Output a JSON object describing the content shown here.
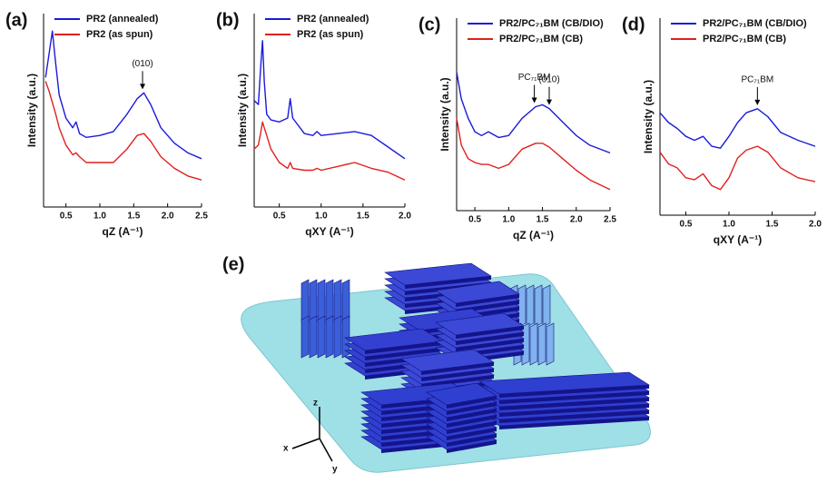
{
  "chart_data": [
    {
      "type": "line",
      "panel_label": "(a)",
      "xlabel": "qZ (A⁻¹)",
      "ylabel": "Intensity (a.u.)",
      "x": [
        0.2,
        0.25,
        0.3,
        0.35,
        0.4,
        0.5,
        0.6,
        0.65,
        0.7,
        0.8,
        1.0,
        1.2,
        1.4,
        1.55,
        1.65,
        1.75,
        1.9,
        2.1,
        2.3,
        2.5
      ],
      "series": [
        {
          "name": "PR2 (annealed)",
          "color": "#1a1adb",
          "values": [
            67,
            79,
            91,
            74,
            58,
            46,
            41,
            44,
            38,
            36,
            37,
            39,
            48,
            56,
            59,
            53,
            41,
            33,
            28,
            25
          ]
        },
        {
          "name": "PR2 (as spun)",
          "color": "#e0201e",
          "values": [
            65,
            60,
            54,
            48,
            41,
            32,
            27,
            28,
            26,
            23,
            23,
            23,
            30,
            37,
            38,
            34,
            26,
            20,
            16,
            14
          ]
        }
      ],
      "xlim": [
        0.17,
        2.5
      ],
      "ylim": [
        0,
        100
      ],
      "xticks": [
        0.5,
        {
          "value": 1,
          "label": "1.0"
        },
        1.5,
        {
          "value": 2,
          "label": "2.0"
        },
        2.5
      ],
      "legend": "top",
      "annotations": [
        {
          "text": "(010)",
          "x": 1.63,
          "arrow": true
        }
      ]
    },
    {
      "type": "line",
      "panel_label": "(b)",
      "xlabel": "qXY (A⁻¹)",
      "ylabel": "Intensity (a.u.)",
      "x": [
        0.2,
        0.25,
        0.28,
        0.3,
        0.32,
        0.35,
        0.4,
        0.5,
        0.6,
        0.63,
        0.66,
        0.8,
        0.9,
        0.95,
        1.0,
        1.2,
        1.4,
        1.6,
        1.8,
        2.0
      ],
      "series": [
        {
          "name": "PR2 (annealed)",
          "color": "#1a1adb",
          "values": [
            55,
            53,
            74,
            86,
            65,
            48,
            45,
            44,
            46,
            56,
            46,
            38,
            37,
            39,
            37,
            38,
            39,
            37,
            31,
            25
          ]
        },
        {
          "name": "PR2 (as spun)",
          "color": "#e0201e",
          "values": [
            30,
            32,
            39,
            44,
            41,
            37,
            30,
            23,
            20,
            23,
            20,
            19,
            19,
            20,
            19,
            21,
            23,
            20,
            18,
            14
          ]
        }
      ],
      "xlim": [
        0.2,
        2.0
      ],
      "ylim": [
        0,
        100
      ],
      "xticks": [
        0.5,
        {
          "value": 1,
          "label": "1.0"
        },
        1.5,
        {
          "value": 2,
          "label": "2.0"
        }
      ],
      "legend": "top",
      "annotations": []
    },
    {
      "type": "line",
      "panel_label": "(c)",
      "xlabel": "qZ (A⁻¹)",
      "ylabel": "Intensity (a.u.)",
      "x": [
        0.23,
        0.3,
        0.4,
        0.5,
        0.6,
        0.7,
        0.85,
        1.0,
        1.2,
        1.4,
        1.5,
        1.6,
        1.8,
        2.0,
        2.2,
        2.5
      ],
      "series": [
        {
          "name": "PR2/PC₇₁BM (CB/DIO)",
          "color": "#1a1adb",
          "values": [
            72,
            58,
            48,
            41,
            39,
            41,
            38,
            39,
            48,
            54,
            55,
            53,
            46,
            39,
            34,
            30
          ]
        },
        {
          "name": "PR2/PC₇₁BM (CB)",
          "color": "#e0201e",
          "values": [
            48,
            34,
            27,
            25,
            24,
            24,
            22,
            24,
            32,
            35,
            35,
            33,
            27,
            21,
            16,
            11
          ]
        }
      ],
      "xlim": [
        0.23,
        2.5
      ],
      "ylim": [
        0,
        100
      ],
      "xticks": [
        0.5,
        {
          "value": 1,
          "label": "1.0"
        },
        1.5,
        {
          "value": 2,
          "label": "2.0"
        },
        2.5
      ],
      "legend": "top",
      "annotations": [
        {
          "text": "PC₇₁BM",
          "x": 1.38,
          "arrow": true
        },
        {
          "text": "(010)",
          "x": 1.6,
          "arrow": true
        }
      ]
    },
    {
      "type": "line",
      "panel_label": "(d)",
      "xlabel": "qXY (A⁻¹)",
      "ylabel": "Intensity (a.u.)",
      "x": [
        0.2,
        0.3,
        0.4,
        0.5,
        0.6,
        0.7,
        0.8,
        0.9,
        1.0,
        1.1,
        1.2,
        1.33,
        1.45,
        1.6,
        1.8,
        2.0
      ],
      "series": [
        {
          "name": "PR2/PC₇₁BM (CB/DIO)",
          "color": "#1a1adb",
          "values": [
            52,
            47,
            44,
            40,
            38,
            40,
            35,
            34,
            40,
            47,
            52,
            54,
            50,
            42,
            38,
            35
          ]
        },
        {
          "name": "PR2/PC₇₁BM (CB)",
          "color": "#e0201e",
          "values": [
            32,
            26,
            24,
            19,
            18,
            21,
            15,
            13,
            19,
            29,
            33,
            35,
            32,
            24,
            19,
            17
          ]
        }
      ],
      "xlim": [
        0.2,
        2.0
      ],
      "ylim": [
        0,
        100
      ],
      "xticks": [
        0.5,
        {
          "value": 1,
          "label": "1.0"
        },
        1.5,
        {
          "value": 2,
          "label": "2.0"
        }
      ],
      "legend": "top",
      "annotations": [
        {
          "text": "PC₇₁BM",
          "x": 1.33,
          "arrow": true
        }
      ]
    }
  ],
  "illustration": {
    "label": "(e)",
    "axes": {
      "x": "x",
      "y": "y",
      "z": "z"
    }
  }
}
